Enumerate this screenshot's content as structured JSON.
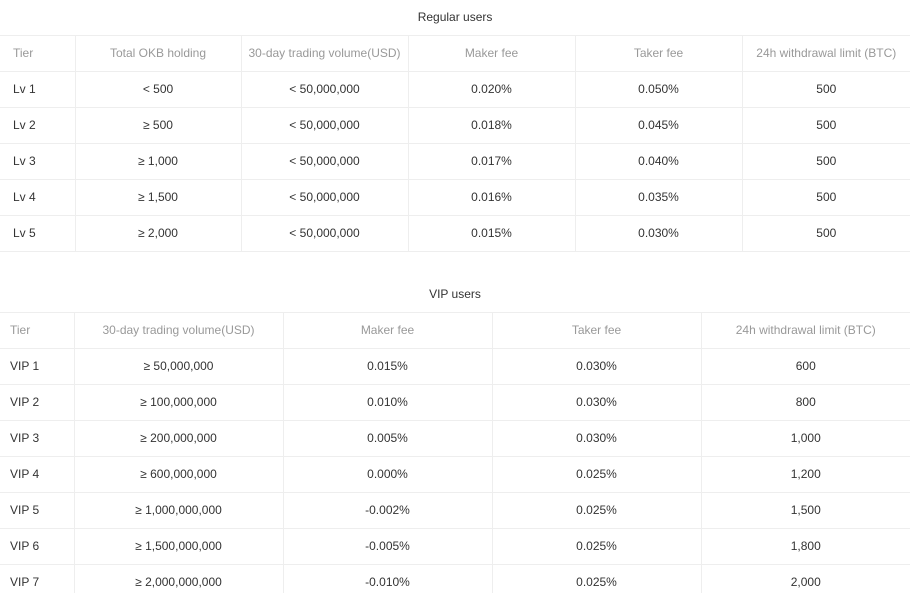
{
  "regular": {
    "title": "Regular users",
    "headers": [
      "Tier",
      "Total OKB holding",
      "30-day trading volume(USD)",
      "Maker fee",
      "Taker fee",
      "24h withdrawal limit (BTC)"
    ],
    "rows": [
      [
        "Lv 1",
        "< 500",
        "< 50,000,000",
        "0.020%",
        "0.050%",
        "500"
      ],
      [
        "Lv 2",
        "≥ 500",
        "< 50,000,000",
        "0.018%",
        "0.045%",
        "500"
      ],
      [
        "Lv 3",
        "≥ 1,000",
        "< 50,000,000",
        "0.017%",
        "0.040%",
        "500"
      ],
      [
        "Lv 4",
        "≥ 1,500",
        "< 50,000,000",
        "0.016%",
        "0.035%",
        "500"
      ],
      [
        "Lv 5",
        "≥ 2,000",
        "< 50,000,000",
        "0.015%",
        "0.030%",
        "500"
      ]
    ]
  },
  "vip": {
    "title": "VIP users",
    "headers": [
      "Tier",
      "30-day trading volume(USD)",
      "Maker fee",
      "Taker fee",
      "24h withdrawal limit (BTC)"
    ],
    "rows": [
      [
        "VIP 1",
        "≥ 50,000,000",
        "0.015%",
        "0.030%",
        "600"
      ],
      [
        "VIP 2",
        "≥ 100,000,000",
        "0.010%",
        "0.030%",
        "800"
      ],
      [
        "VIP 3",
        "≥ 200,000,000",
        "0.005%",
        "0.030%",
        "1,000"
      ],
      [
        "VIP 4",
        "≥ 600,000,000",
        "0.000%",
        "0.025%",
        "1,200"
      ],
      [
        "VIP 5",
        "≥ 1,000,000,000",
        "-0.002%",
        "0.025%",
        "1,500"
      ],
      [
        "VIP 6",
        "≥ 1,500,000,000",
        "-0.005%",
        "0.025%",
        "1,800"
      ],
      [
        "VIP 7",
        "≥ 2,000,000,000",
        "-0.010%",
        "0.025%",
        "2,000"
      ]
    ]
  },
  "colors": {
    "border": "#eeeeee",
    "header_text": "#999999",
    "body_text": "#333333"
  }
}
